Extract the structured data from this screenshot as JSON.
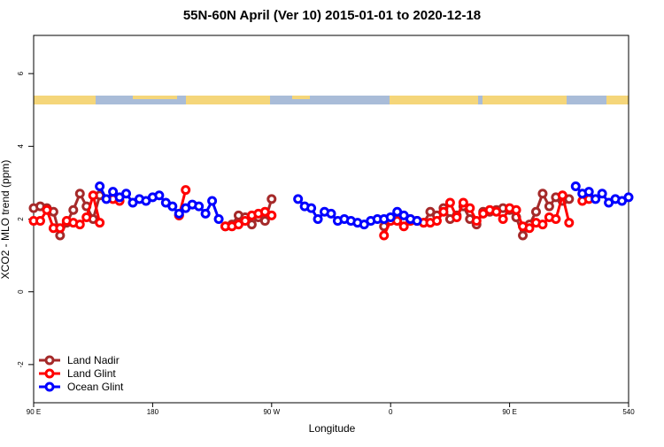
{
  "chart_data": {
    "type": "line",
    "title": "55N-60N April (Ver 10)   2015-01-01 to 2020-12-18",
    "x_label": "Longitude",
    "y_label": "XCO2 - MLO trend (ppm)",
    "x": [
      90,
      95,
      100,
      105,
      110,
      115,
      120,
      125,
      130,
      135,
      140,
      145,
      150,
      155,
      160,
      165,
      170,
      175,
      180,
      185,
      190,
      195,
      200,
      205,
      210,
      215,
      220,
      225,
      230,
      235,
      240,
      245,
      250,
      255,
      260,
      265,
      270,
      275,
      280,
      285,
      290,
      295,
      300,
      305,
      310,
      315,
      320,
      325,
      330,
      335,
      340,
      345,
      350,
      355,
      360,
      365,
      370,
      375,
      380,
      385,
      390,
      395,
      400,
      405,
      410,
      415,
      420,
      425,
      430,
      435,
      440,
      445,
      450,
      455,
      460,
      465,
      470,
      475,
      480,
      485,
      490,
      495,
      500,
      505,
      510,
      515,
      520,
      525,
      530,
      535,
      540
    ],
    "series": [
      {
        "name": "Land Nadir",
        "color": "#a52a2a",
        "values": [
          2.3,
          2.35,
          2.3,
          2.2,
          1.55,
          1.9,
          2.25,
          2.7,
          2.35,
          2.0,
          2.65,
          null,
          null,
          null,
          null,
          null,
          null,
          null,
          null,
          null,
          null,
          null,
          2.1,
          null,
          null,
          null,
          null,
          null,
          null,
          1.8,
          1.85,
          2.1,
          2.05,
          1.85,
          2.05,
          1.95,
          2.55,
          null,
          null,
          null,
          null,
          null,
          null,
          null,
          null,
          null,
          null,
          null,
          null,
          null,
          null,
          null,
          null,
          1.8,
          2.0,
          2.05,
          1.95,
          2.0,
          1.95,
          1.9,
          2.2,
          2.1,
          2.3,
          2.0,
          2.1,
          2.35,
          2.0,
          1.85,
          2.2,
          2.2,
          2.25,
          2.3,
          2.25,
          2.05,
          1.55,
          1.85,
          2.2,
          2.7,
          2.35,
          2.6,
          2.5,
          2.55,
          null,
          null,
          null,
          null,
          null,
          null,
          null,
          null,
          null
        ]
      },
      {
        "name": "Land Glint",
        "color": "#ff0000",
        "values": [
          1.95,
          1.95,
          2.25,
          1.75,
          1.75,
          1.95,
          1.9,
          1.85,
          2.05,
          2.65,
          1.9,
          null,
          2.55,
          2.5,
          null,
          null,
          null,
          null,
          null,
          null,
          null,
          null,
          2.1,
          2.8,
          null,
          null,
          null,
          null,
          null,
          1.8,
          1.8,
          1.85,
          1.95,
          2.1,
          2.15,
          2.2,
          2.1,
          null,
          null,
          null,
          null,
          null,
          null,
          null,
          null,
          null,
          null,
          null,
          null,
          null,
          null,
          null,
          null,
          1.55,
          1.95,
          1.95,
          1.8,
          1.95,
          1.95,
          1.9,
          1.9,
          1.95,
          2.2,
          2.45,
          2.05,
          2.45,
          2.3,
          1.95,
          2.15,
          2.25,
          2.2,
          2.0,
          2.3,
          2.25,
          1.8,
          1.75,
          1.9,
          1.85,
          2.05,
          2.0,
          2.65,
          1.9,
          null,
          2.5,
          2.55,
          null,
          null,
          null,
          null,
          null,
          null
        ]
      },
      {
        "name": "Ocean Glint",
        "color": "#0000ff",
        "values": [
          null,
          null,
          null,
          null,
          null,
          null,
          null,
          null,
          null,
          null,
          2.9,
          2.55,
          2.75,
          2.6,
          2.7,
          2.45,
          2.55,
          2.5,
          2.6,
          2.65,
          2.45,
          2.35,
          2.15,
          2.3,
          2.4,
          2.35,
          2.15,
          2.5,
          2.0,
          null,
          null,
          null,
          null,
          null,
          null,
          null,
          null,
          null,
          null,
          null,
          2.55,
          2.35,
          2.3,
          2.0,
          2.2,
          2.15,
          1.95,
          2.0,
          1.95,
          1.9,
          1.85,
          1.95,
          2.0,
          2.0,
          2.05,
          2.2,
          2.1,
          2.0,
          1.95,
          null,
          null,
          null,
          null,
          null,
          null,
          null,
          null,
          null,
          null,
          null,
          null,
          null,
          null,
          null,
          null,
          null,
          null,
          null,
          null,
          null,
          null,
          null,
          2.9,
          2.7,
          2.75,
          2.55,
          2.7,
          2.45,
          2.55,
          2.5,
          2.6
        ]
      }
    ],
    "xlim": [
      90,
      540
    ],
    "xticks": [
      {
        "value": 90,
        "label": "90 E"
      },
      180,
      {
        "value": 270,
        "label": "90 W"
      },
      {
        "value": 360,
        "label": "0"
      },
      {
        "value": 450,
        "label": "90 E"
      },
      540
    ],
    "ylim": [
      -3.05,
      7.05
    ],
    "yticks": [
      -2,
      0,
      2,
      4,
      6
    ],
    "legend": "bottom-left"
  }
}
